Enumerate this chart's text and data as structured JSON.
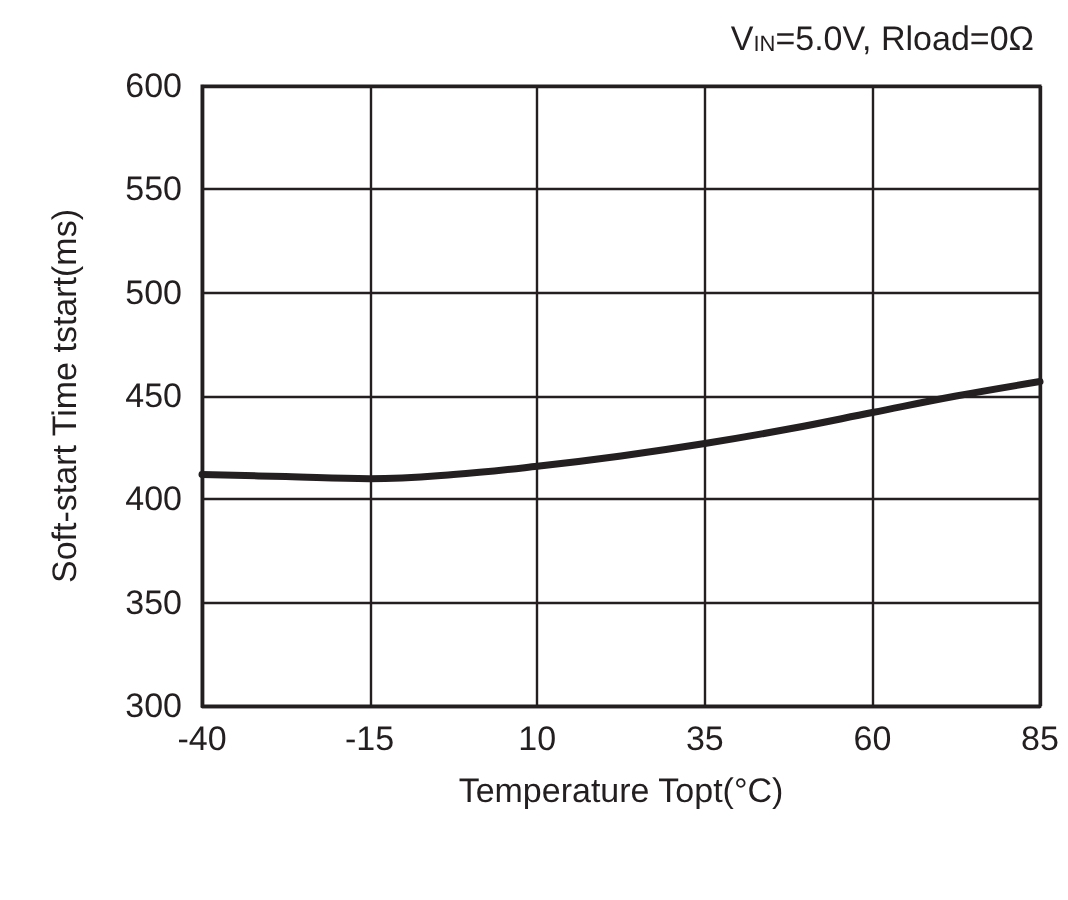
{
  "chart_data": {
    "type": "line",
    "title": "V$_{IN}$=5.0V, Rload=0Ω",
    "xlabel": "Temperature Topt(°C)",
    "ylabel": "Soft-start Time tstart(ms)",
    "x": [
      -40,
      -27.5,
      -15,
      -2.5,
      10,
      22.5,
      35,
      47.5,
      60,
      72.5,
      85
    ],
    "series": [
      {
        "color": "#231f20",
        "values": [
          412,
          411,
          410,
          412,
          416,
          421,
          427,
          434,
          442,
          450,
          457
        ]
      }
    ],
    "xlim": [
      -40,
      85
    ],
    "xticks": [
      -40,
      -15,
      10,
      35,
      60,
      85
    ],
    "ylim": [
      300,
      600
    ],
    "yticks": [
      300,
      350,
      400,
      450,
      500,
      550,
      600
    ],
    "grid": true,
    "marker": "none",
    "line_style": "solid"
  }
}
